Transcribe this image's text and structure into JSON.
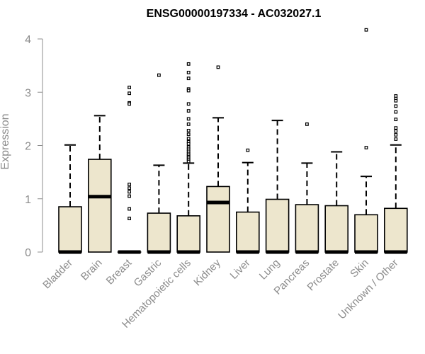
{
  "chart_data": {
    "type": "boxplot",
    "title": "ENSG00000197334 - AC032027.1",
    "ylabel": "Expression",
    "xlabel": "",
    "ylim": [
      0,
      4
    ],
    "yticks": [
      "0",
      "1",
      "2",
      "3",
      "4"
    ],
    "grid": false,
    "legend": "none",
    "box_fill_color": "#ede6cd",
    "box_edge_color": "#000000",
    "axis_color": "#8c8c8c",
    "categories": [
      "Bladder",
      "Brain",
      "Breast",
      "Gastric",
      "Hematopoietic cells",
      "Kidney",
      "Liver",
      "Lung",
      "Pancreas",
      "Prostate",
      "Skin",
      "Unknown / Other"
    ],
    "boxes": [
      {
        "category": "Bladder",
        "q1": 0,
        "median": 0,
        "q3": 0.85,
        "whisker_low": 0,
        "whisker_high": 2.01,
        "outliers": []
      },
      {
        "category": "Brain",
        "q1": 0,
        "median": 1.04,
        "q3": 1.74,
        "whisker_low": 0,
        "whisker_high": 2.56,
        "outliers": []
      },
      {
        "category": "Breast",
        "q1": 0,
        "median": 0,
        "q3": 0,
        "whisker_low": 0,
        "whisker_high": 0,
        "outliers": [
          3.09,
          2.98,
          2.8,
          2.78,
          1.27,
          1.2,
          1.13,
          1.05,
          0.81,
          0.63
        ]
      },
      {
        "category": "Gastric",
        "q1": 0,
        "median": 0,
        "q3": 0.73,
        "whisker_low": 0,
        "whisker_high": 1.63,
        "outliers": [
          3.32
        ]
      },
      {
        "category": "Hematopoietic cells",
        "q1": 0,
        "median": 0,
        "q3": 0.68,
        "whisker_low": 0,
        "whisker_high": 1.67,
        "outliers": [
          3.53,
          3.37,
          3.26,
          3.06,
          3.03,
          2.78,
          2.65,
          2.5,
          2.4,
          2.28,
          2.21,
          2.13,
          2.07,
          2.03,
          1.97,
          1.93,
          1.89,
          1.85,
          1.82,
          1.79,
          1.76,
          1.73,
          1.7
        ]
      },
      {
        "category": "Kidney",
        "q1": 0,
        "median": 0.93,
        "q3": 1.23,
        "whisker_low": 0,
        "whisker_high": 2.52,
        "outliers": [
          3.47
        ]
      },
      {
        "category": "Liver",
        "q1": 0,
        "median": 0,
        "q3": 0.75,
        "whisker_low": 0,
        "whisker_high": 1.68,
        "outliers": [
          1.91
        ]
      },
      {
        "category": "Lung",
        "q1": 0,
        "median": 0,
        "q3": 0.99,
        "whisker_low": 0,
        "whisker_high": 2.47,
        "outliers": []
      },
      {
        "category": "Pancreas",
        "q1": 0,
        "median": 0,
        "q3": 0.89,
        "whisker_low": 0,
        "whisker_high": 1.67,
        "outliers": [
          2.4
        ]
      },
      {
        "category": "Prostate",
        "q1": 0,
        "median": 0,
        "q3": 0.87,
        "whisker_low": 0,
        "whisker_high": 1.88,
        "outliers": []
      },
      {
        "category": "Skin",
        "q1": 0,
        "median": 0,
        "q3": 0.7,
        "whisker_low": 0,
        "whisker_high": 1.42,
        "outliers": [
          4.17,
          1.96
        ]
      },
      {
        "category": "Unknown / Other",
        "q1": 0,
        "median": 0,
        "q3": 0.82,
        "whisker_low": 0,
        "whisker_high": 2.01,
        "outliers": [
          2.93,
          2.88,
          2.84,
          2.74,
          2.63,
          2.49,
          2.33,
          2.27,
          2.2,
          2.12
        ]
      }
    ]
  }
}
